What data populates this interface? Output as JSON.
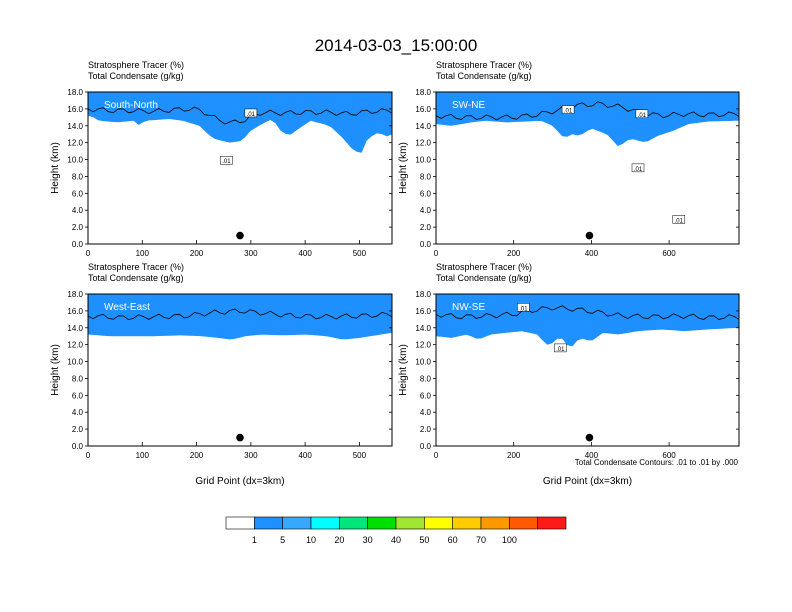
{
  "title": "2014-03-03_15:00:00",
  "colors": {
    "levels": [
      "#ffffff",
      "#1e90ff",
      "#36a9ff",
      "#00ffff",
      "#00e67a",
      "#00e000",
      "#a0e632",
      "#ffff00",
      "#ffcc00",
      "#ff9900",
      "#ff5a00",
      "#ff1a1a"
    ],
    "contour": "#000000"
  },
  "colorbar": {
    "labels": [
      "1",
      "5",
      "10",
      "20",
      "30",
      "40",
      "50",
      "60",
      "70",
      "100"
    ]
  },
  "contour_note": "Total Condensate Contours: .01 to .01 by .000",
  "chart_data": [
    {
      "type": "heatmap",
      "label": "South-North",
      "title_lines": [
        "Stratosphere Tracer   (%)",
        "Total Condensate   (g/kg)"
      ],
      "ylabel": "Height (km)",
      "xlabel": "",
      "xlim": [
        0,
        560
      ],
      "ylim": [
        0,
        18
      ],
      "xticks": [
        0,
        100,
        200,
        300,
        400,
        500
      ],
      "yticks": [
        "0.0",
        "2.0",
        "4.0",
        "6.0",
        "8.0",
        "10.0",
        "12.0",
        "14.0",
        "16.0",
        "18.0"
      ],
      "dot": {
        "x": 280,
        "y": 1.0
      },
      "contour_labels": [
        {
          "text": ".01",
          "x": 300,
          "y": 15.4
        },
        {
          "text": ".01",
          "x": 255,
          "y": 9.8
        }
      ],
      "profile": [
        [
          0,
          16.0
        ],
        [
          40,
          15.8
        ],
        [
          80,
          15.8
        ],
        [
          120,
          15.7
        ],
        [
          160,
          15.9
        ],
        [
          190,
          16.0
        ],
        [
          210,
          15.8
        ],
        [
          230,
          15.0
        ],
        [
          260,
          14.3
        ],
        [
          290,
          14.7
        ],
        [
          320,
          15.6
        ],
        [
          360,
          15.5
        ],
        [
          400,
          15.6
        ],
        [
          440,
          15.6
        ],
        [
          480,
          15.4
        ],
        [
          520,
          15.7
        ],
        [
          560,
          15.8
        ]
      ],
      "deep": [
        [
          5,
          15.2
        ],
        [
          20,
          14.6
        ],
        [
          55,
          14.4
        ],
        [
          85,
          14.6
        ],
        [
          95,
          14.0
        ],
        [
          105,
          14.6
        ],
        [
          150,
          14.8
        ],
        [
          175,
          14.6
        ],
        [
          205,
          14.0
        ],
        [
          230,
          12.5
        ],
        [
          260,
          12.0
        ],
        [
          285,
          12.2
        ],
        [
          295,
          13.2
        ],
        [
          320,
          14.2
        ],
        [
          340,
          14.8
        ],
        [
          355,
          13.4
        ],
        [
          370,
          12.8
        ],
        [
          385,
          13.5
        ],
        [
          410,
          14.6
        ],
        [
          445,
          14.0
        ],
        [
          470,
          12.5
        ],
        [
          490,
          11.0
        ],
        [
          505,
          10.8
        ],
        [
          515,
          12.5
        ],
        [
          535,
          13.2
        ],
        [
          552,
          12.7
        ],
        [
          560,
          13.0
        ]
      ]
    },
    {
      "type": "heatmap",
      "label": "SW-NE",
      "title_lines": [
        "Stratosphere Tracer   (%)",
        "Total Condensate   (g/kg)"
      ],
      "ylabel": "Height (km)",
      "xlabel": "",
      "xlim": [
        0,
        780
      ],
      "ylim": [
        0,
        18
      ],
      "xticks": [
        0,
        200,
        400,
        600
      ],
      "yticks": [
        "0.0",
        "2.0",
        "4.0",
        "6.0",
        "8.0",
        "10.0",
        "12.0",
        "14.0",
        "16.0",
        "18.0"
      ],
      "dot": {
        "x": 395,
        "y": 1.0
      },
      "contour_labels": [
        {
          "text": ".01",
          "x": 340,
          "y": 15.8
        },
        {
          "text": ".01",
          "x": 520,
          "y": 8.9
        },
        {
          "text": ".01",
          "x": 625,
          "y": 2.8
        },
        {
          "text": ".01",
          "x": 530,
          "y": 15.3
        }
      ],
      "profile": [
        [
          0,
          15.2
        ],
        [
          60,
          15.0
        ],
        [
          130,
          15.0
        ],
        [
          200,
          15.0
        ],
        [
          260,
          15.3
        ],
        [
          310,
          15.8
        ],
        [
          360,
          16.4
        ],
        [
          420,
          16.6
        ],
        [
          480,
          16.2
        ],
        [
          530,
          15.5
        ],
        [
          580,
          15.2
        ],
        [
          640,
          15.4
        ],
        [
          700,
          15.3
        ],
        [
          780,
          15.4
        ]
      ],
      "deep": [
        [
          0,
          14.2
        ],
        [
          40,
          14.0
        ],
        [
          90,
          14.4
        ],
        [
          130,
          14.6
        ],
        [
          180,
          14.4
        ],
        [
          230,
          14.5
        ],
        [
          270,
          14.6
        ],
        [
          300,
          14.0
        ],
        [
          330,
          12.5
        ],
        [
          350,
          13.0
        ],
        [
          370,
          12.8
        ],
        [
          400,
          13.7
        ],
        [
          440,
          13.0
        ],
        [
          470,
          11.5
        ],
        [
          500,
          12.5
        ],
        [
          540,
          12.0
        ],
        [
          570,
          12.8
        ],
        [
          610,
          13.4
        ],
        [
          650,
          14.2
        ],
        [
          700,
          14.5
        ],
        [
          780,
          14.6
        ]
      ]
    },
    {
      "type": "heatmap",
      "label": "West-East",
      "title_lines": [
        "Stratosphere Tracer   (%)",
        "Total Condensate   (g/kg)"
      ],
      "ylabel": "Height (km)",
      "xlabel": "Grid Point (dx=3km)",
      "xlim": [
        0,
        560
      ],
      "ylim": [
        0,
        18
      ],
      "xticks": [
        0,
        100,
        200,
        300,
        400,
        500
      ],
      "yticks": [
        "0.0",
        "2.0",
        "4.0",
        "6.0",
        "8.0",
        "10.0",
        "12.0",
        "14.0",
        "16.0",
        "18.0"
      ],
      "dot": {
        "x": 280,
        "y": 1.0
      },
      "contour_labels": [],
      "profile": [
        [
          0,
          15.4
        ],
        [
          60,
          15.2
        ],
        [
          120,
          15.3
        ],
        [
          180,
          15.4
        ],
        [
          230,
          15.8
        ],
        [
          280,
          16.0
        ],
        [
          330,
          15.7
        ],
        [
          380,
          15.4
        ],
        [
          440,
          15.3
        ],
        [
          500,
          15.4
        ],
        [
          560,
          15.6
        ]
      ],
      "deep": [
        [
          0,
          13.2
        ],
        [
          40,
          13.0
        ],
        [
          80,
          13.0
        ],
        [
          120,
          13.0
        ],
        [
          170,
          13.1
        ],
        [
          210,
          13.0
        ],
        [
          240,
          12.8
        ],
        [
          265,
          12.6
        ],
        [
          290,
          13.0
        ],
        [
          320,
          13.2
        ],
        [
          360,
          13.1
        ],
        [
          400,
          13.2
        ],
        [
          440,
          13.0
        ],
        [
          470,
          12.6
        ],
        [
          500,
          12.8
        ],
        [
          540,
          13.2
        ],
        [
          560,
          13.4
        ]
      ]
    },
    {
      "type": "heatmap",
      "label": "NW-SE",
      "title_lines": [
        "Stratosphere Tracer   (%)",
        "Total Condensate   (g/kg)"
      ],
      "ylabel": "Height (km)",
      "xlabel": "Grid Point (dx=3km)",
      "xlim": [
        0,
        780
      ],
      "ylim": [
        0,
        18
      ],
      "xticks": [
        0,
        200,
        400,
        600
      ],
      "yticks": [
        "0.0",
        "2.0",
        "4.0",
        "6.0",
        "8.0",
        "10.0",
        "12.0",
        "14.0",
        "16.0",
        "18.0"
      ],
      "dot": {
        "x": 395,
        "y": 1.0
      },
      "contour_labels": [
        {
          "text": ".01",
          "x": 225,
          "y": 16.3
        },
        {
          "text": ".01",
          "x": 320,
          "y": 11.5
        }
      ],
      "profile": [
        [
          0,
          15.6
        ],
        [
          60,
          15.3
        ],
        [
          130,
          15.4
        ],
        [
          200,
          15.6
        ],
        [
          240,
          16.0
        ],
        [
          300,
          16.4
        ],
        [
          360,
          16.2
        ],
        [
          420,
          15.8
        ],
        [
          480,
          15.4
        ],
        [
          560,
          15.3
        ],
        [
          640,
          15.4
        ],
        [
          700,
          15.2
        ],
        [
          780,
          15.3
        ]
      ],
      "deep": [
        [
          0,
          13.0
        ],
        [
          40,
          12.8
        ],
        [
          80,
          13.2
        ],
        [
          110,
          12.6
        ],
        [
          140,
          13.2
        ],
        [
          180,
          13.4
        ],
        [
          220,
          13.6
        ],
        [
          260,
          13.2
        ],
        [
          290,
          11.8
        ],
        [
          320,
          13.0
        ],
        [
          345,
          11.5
        ],
        [
          370,
          12.8
        ],
        [
          400,
          12.4
        ],
        [
          430,
          13.4
        ],
        [
          470,
          13.2
        ],
        [
          520,
          13.6
        ],
        [
          580,
          13.8
        ],
        [
          640,
          13.6
        ],
        [
          700,
          13.8
        ],
        [
          780,
          14.0
        ]
      ]
    }
  ]
}
